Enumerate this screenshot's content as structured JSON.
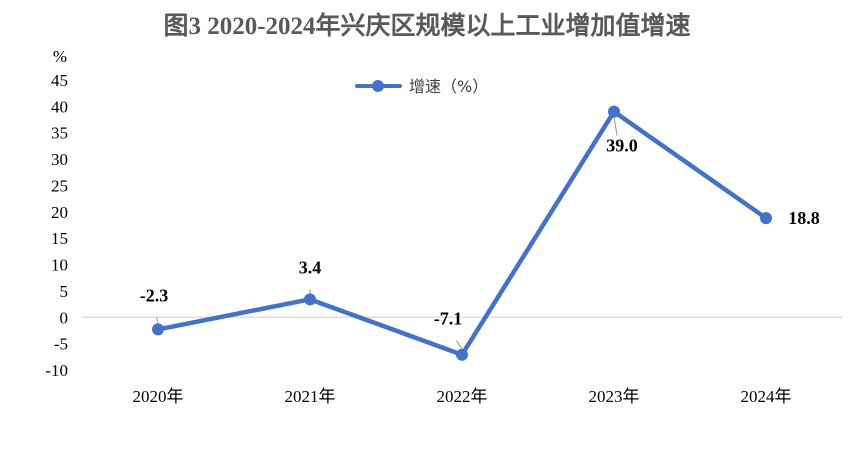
{
  "colors": {
    "series": "#4472C4",
    "axis_line": "#D9D9D9",
    "leader": "#A6A6A6",
    "title": "#595959"
  },
  "chart_data": {
    "type": "line",
    "title": "图3   2020-2024年兴庆区规模以上工业增加值增速",
    "ylabel": "%",
    "xlabel": "",
    "categories": [
      "2020年",
      "2021年",
      "2022年",
      "2023年",
      "2024年"
    ],
    "series": [
      {
        "name": "增速（%）",
        "values": [
          -2.3,
          3.4,
          -7.1,
          39.0,
          18.8
        ],
        "labels": [
          "-2.3",
          "3.4",
          "-7.1",
          "39.0",
          "18.8"
        ]
      }
    ],
    "ylim": [
      -10,
      45
    ],
    "yticks": [
      -10,
      -5,
      0,
      5,
      10,
      15,
      20,
      25,
      30,
      35,
      40,
      45
    ],
    "ytick_labels": [
      "-10",
      "-5",
      "0",
      "5",
      "10",
      "15",
      "20",
      "25",
      "30",
      "35",
      "40",
      "45"
    ],
    "grid": false,
    "legend_position": "top"
  }
}
